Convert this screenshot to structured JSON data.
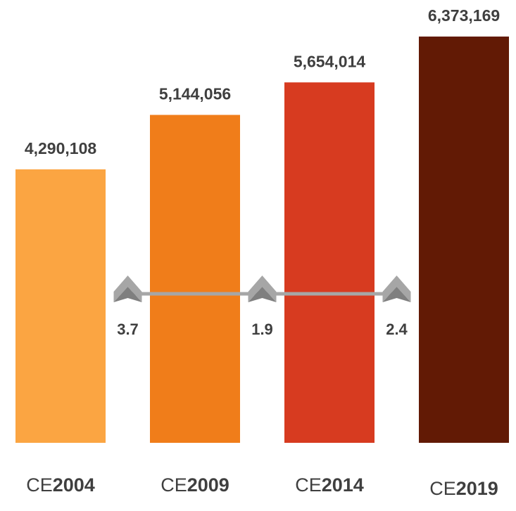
{
  "chart_data": {
    "type": "bar",
    "categories": [
      "CE2004",
      "CE2009",
      "CE2014",
      "CE2019"
    ],
    "values": [
      4290108,
      5144056,
      5654014,
      6373169
    ],
    "value_labels": [
      "4,290,108",
      "5,144,056",
      "5,654,014",
      "6,373,169"
    ],
    "colors": [
      "#FBA542",
      "#F07D1A",
      "#D73B20",
      "#621A05"
    ],
    "growth": {
      "values": [
        3.7,
        1.9,
        2.4
      ],
      "color": "#a6a6a6"
    }
  }
}
